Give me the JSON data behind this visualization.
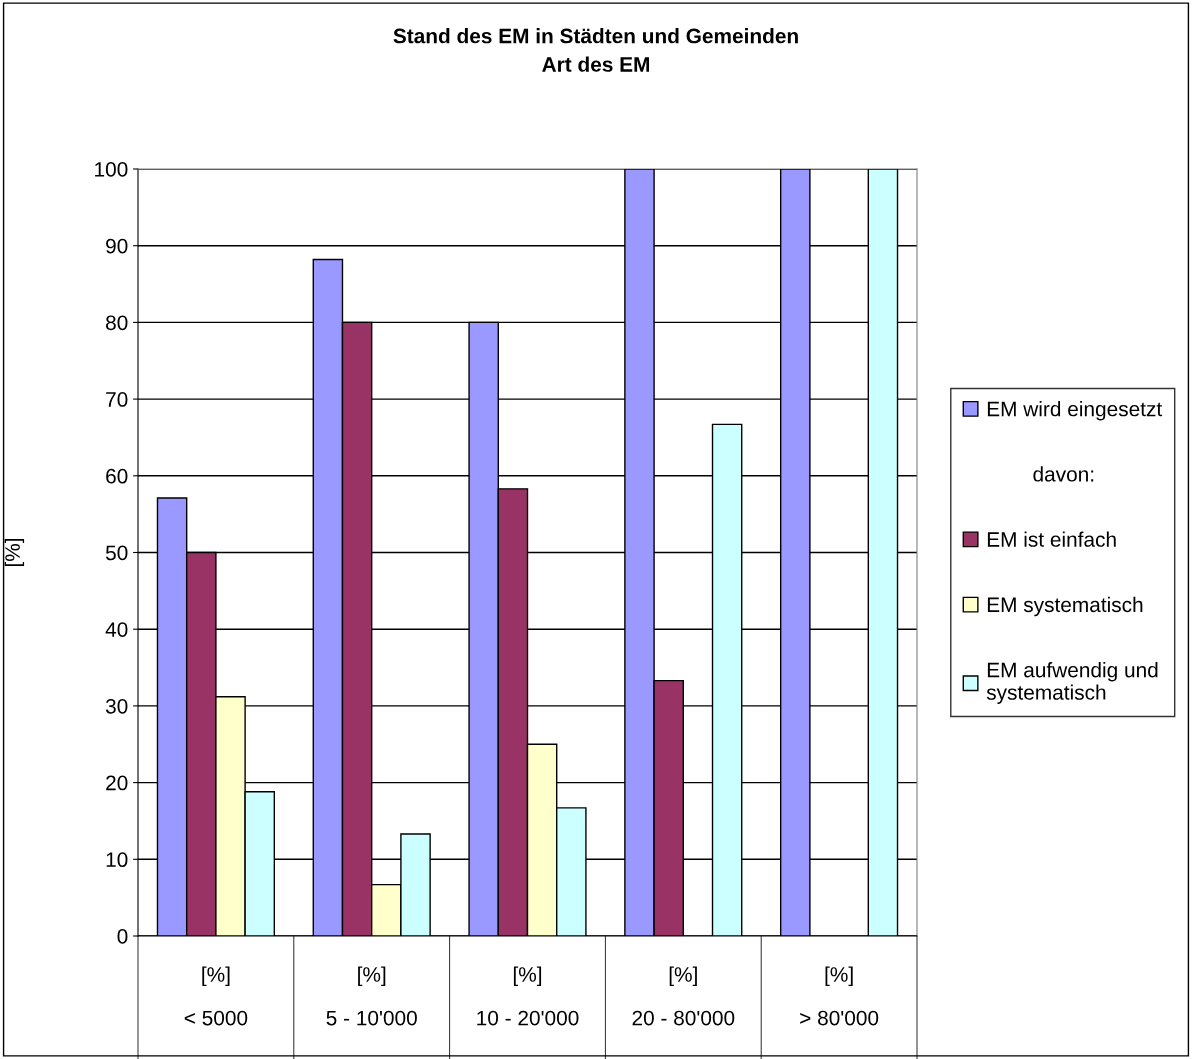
{
  "chart_data": {
    "type": "bar",
    "title": "Stand des EM in Städten und Gemeinden\nArt des EM",
    "ylabel": "[%]",
    "categories": [
      "[%]\n< 5000",
      "[%]\n5 - 10'000",
      "[%]\n10 - 20'000",
      "[%]\n20 - 80'000",
      "[%]\n> 80'000"
    ],
    "series": [
      {
        "name": "EM wird eingesetzt",
        "color": "#9999ff",
        "values": [
          57.1,
          88.2,
          80,
          100,
          100
        ]
      },
      {
        "name": "EM ist einfach",
        "color": "#993366",
        "values": [
          50,
          80,
          58.3,
          33.3,
          null
        ]
      },
      {
        "name": "EM systematisch",
        "color": "#ffffcc",
        "values": [
          31.2,
          6.7,
          25,
          null,
          null
        ]
      },
      {
        "name": "EM aufwendig und\nsystematisch",
        "color": "#ccffff",
        "values": [
          18.8,
          13.3,
          16.7,
          66.7,
          100
        ]
      }
    ],
    "annotations": [
      "davon:"
    ],
    "ylim": [
      0,
      100
    ],
    "yticks": [
      0,
      10,
      20,
      30,
      40,
      50,
      60,
      70,
      80,
      90,
      100
    ],
    "grid": "y",
    "legend": "right"
  }
}
